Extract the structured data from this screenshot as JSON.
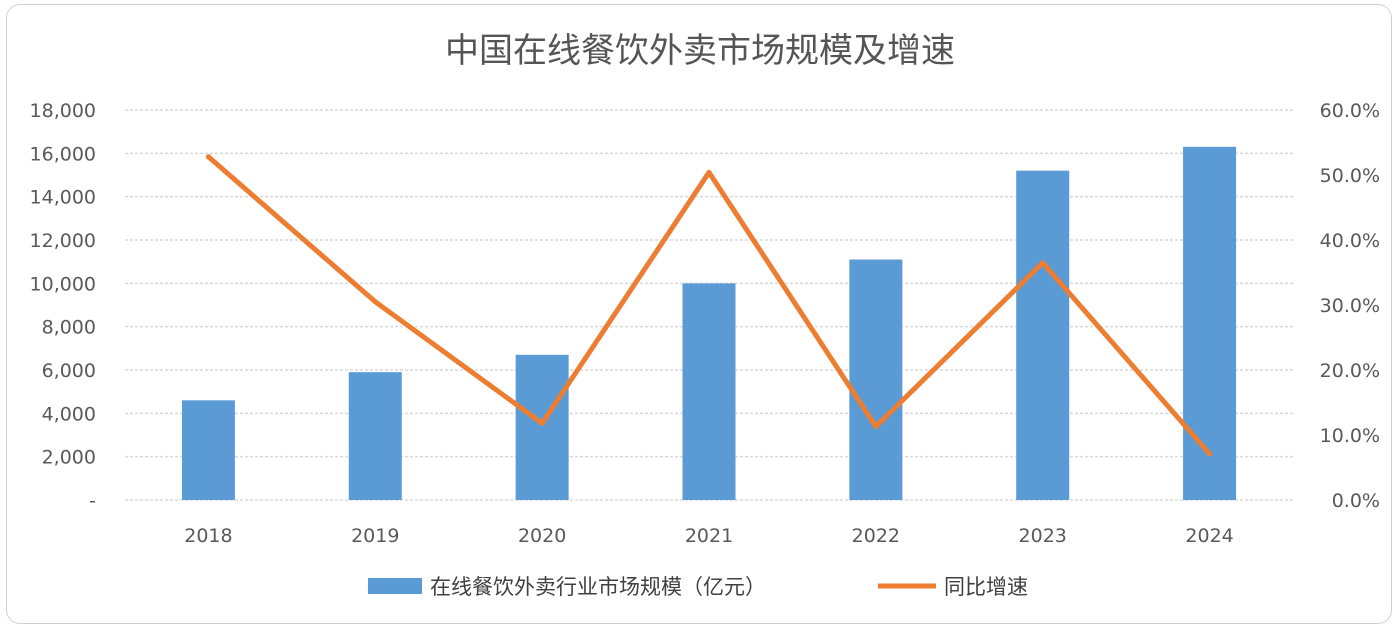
{
  "chart_data": {
    "type": "bar",
    "title": "中国在线餐饮外卖市场规模及增速",
    "categories": [
      "2018",
      "2019",
      "2020",
      "2021",
      "2022",
      "2023",
      "2024"
    ],
    "series": [
      {
        "name": "在线餐饮外卖行业市场规模（亿元）",
        "type": "bar",
        "axis": "left",
        "color": "#5b9bd5",
        "values": [
          4600,
          5900,
          6700,
          10000,
          11100,
          15200,
          16300
        ]
      },
      {
        "name": "同比增速",
        "type": "line",
        "axis": "right",
        "color": "#ed7d31",
        "values": [
          52.8,
          30.5,
          11.8,
          50.4,
          11.3,
          36.5,
          7.1
        ]
      }
    ],
    "ylim": [
      0,
      18000
    ],
    "y2lim": [
      0,
      60
    ],
    "yticks": [
      "-",
      "2,000",
      "4,000",
      "6,000",
      "8,000",
      "10,000",
      "12,000",
      "14,000",
      "16,000",
      "18,000"
    ],
    "y2ticks": [
      "0.0%",
      "10.0%",
      "20.0%",
      "30.0%",
      "40.0%",
      "50.0%",
      "60.0%"
    ],
    "grid": true,
    "legend": "bottom"
  }
}
